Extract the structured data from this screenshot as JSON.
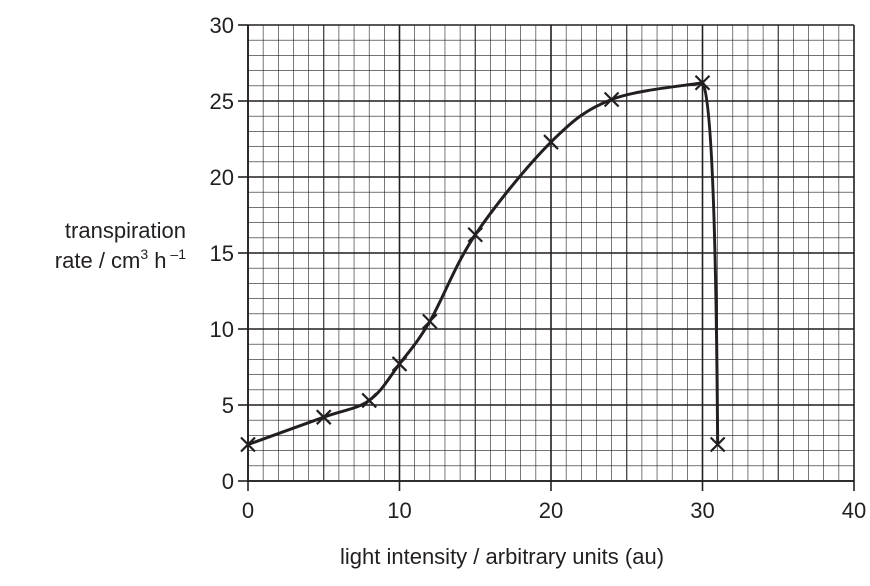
{
  "chart_data": {
    "type": "line",
    "xlabel": "light intensity / arbitrary units (au)",
    "ylabel": {
      "line1": "transpiration",
      "line2_prefix": "rate / cm",
      "line2_sup1": "3",
      "line2_mid": " h",
      "line2_sup2": " –1"
    },
    "xlim": [
      0,
      40
    ],
    "ylim": [
      0,
      30
    ],
    "x_ticks": [
      0,
      10,
      20,
      30,
      40
    ],
    "y_ticks": [
      0,
      5,
      10,
      15,
      20,
      25,
      30
    ],
    "x_tick_labels": [
      "0",
      "10",
      "20",
      "30",
      "40"
    ],
    "y_tick_labels": [
      "0",
      "5",
      "10",
      "15",
      "20",
      "25",
      "30"
    ],
    "grid": true,
    "series": [
      {
        "x": [
          0,
          5,
          8,
          10,
          12,
          15,
          20,
          24,
          30,
          31
        ],
        "y": [
          2.4,
          4.2,
          5.3,
          7.7,
          10.5,
          16.2,
          22.3,
          25.1,
          26.2,
          2.4
        ]
      }
    ]
  }
}
